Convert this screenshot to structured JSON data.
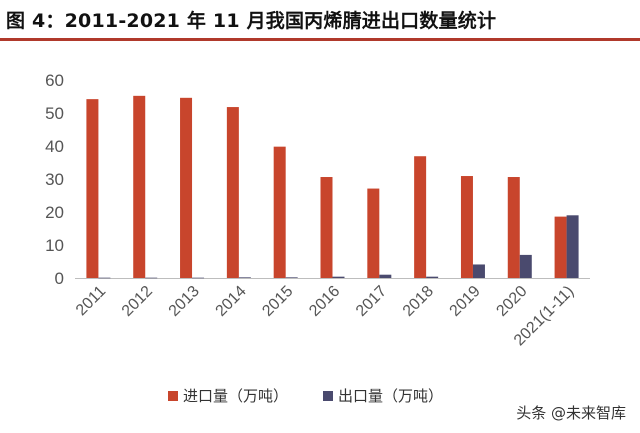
{
  "figure": {
    "title": "图 4：2011-2021 年 11 月我国丙烯腈进出口数量统计"
  },
  "chart_data": {
    "type": "bar",
    "categories": [
      "2011",
      "2012",
      "2013",
      "2014",
      "2015",
      "2016",
      "2017",
      "2018",
      "2019",
      "2020",
      "2021(1-11)"
    ],
    "series": [
      {
        "name": "进口量（万吨）",
        "color": "#c8452c",
        "values": [
          54.2,
          55.2,
          54.6,
          51.8,
          39.8,
          30.6,
          27.1,
          36.9,
          30.9,
          30.6,
          18.6
        ]
      },
      {
        "name": "出口量（万吨）",
        "color": "#4a4a6e",
        "values": [
          0.1,
          0.1,
          0.1,
          0.2,
          0.2,
          0.4,
          1.0,
          0.4,
          4.1,
          7.0,
          19.0
        ]
      }
    ],
    "ylim": [
      0,
      60
    ],
    "yticks": [
      0,
      10,
      20,
      30,
      40,
      50,
      60
    ],
    "grid": false,
    "legend_position": "bottom-center",
    "xlabel": "",
    "ylabel": ""
  },
  "watermark": {
    "text": "头条 @未来智库"
  }
}
